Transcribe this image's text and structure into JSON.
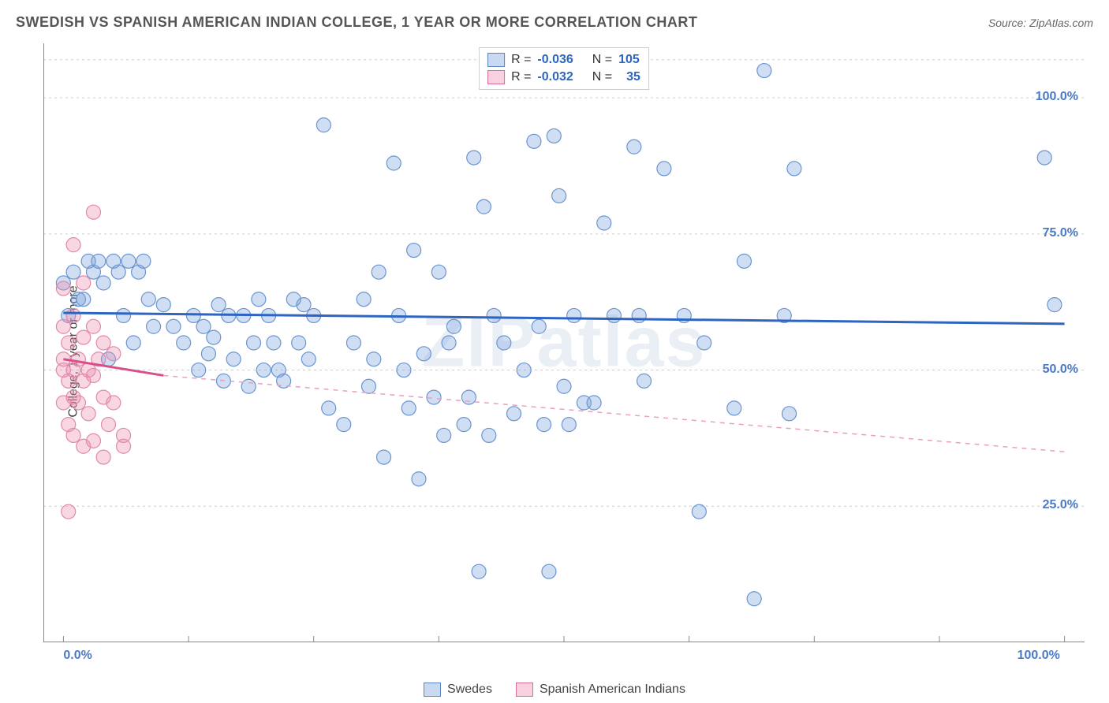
{
  "header": {
    "title": "SWEDISH VS SPANISH AMERICAN INDIAN COLLEGE, 1 YEAR OR MORE CORRELATION CHART",
    "source": "Source: ZipAtlas.com"
  },
  "watermark": "ZIPatlas",
  "chart": {
    "type": "scatter",
    "ylabel": "College, 1 year or more",
    "xlim": [
      -2,
      102
    ],
    "ylim": [
      0,
      110
    ],
    "x_axis_labels": [
      {
        "pos": 0,
        "text": "0.0%",
        "color": "#4a7ac7"
      },
      {
        "pos": 100,
        "text": "100.0%",
        "color": "#4a7ac7"
      }
    ],
    "x_ticks": [
      0,
      12.5,
      25,
      37.5,
      50,
      62.5,
      75,
      87.5,
      100
    ],
    "y_axis_labels": [
      {
        "pos": 25,
        "text": "25.0%",
        "color": "#4a7ac7"
      },
      {
        "pos": 50,
        "text": "50.0%",
        "color": "#4a7ac7"
      },
      {
        "pos": 75,
        "text": "75.0%",
        "color": "#4a7ac7"
      },
      {
        "pos": 100,
        "text": "100.0%",
        "color": "#4a7ac7"
      }
    ],
    "grid_lines_y": [
      25,
      50,
      75,
      100,
      107
    ],
    "grid_color": "#cccccc",
    "background_color": "#ffffff",
    "series": [
      {
        "name": "Swedes",
        "fill": "rgba(120, 160, 220, 0.35)",
        "stroke": "#6a95d0",
        "marker_radius": 9,
        "trend": {
          "x1": 0,
          "y1": 60.5,
          "x2": 100,
          "y2": 58.5,
          "stroke": "#2d65c0",
          "width": 3,
          "dash": "none"
        },
        "R": "-0.036",
        "N": "105",
        "legend_border": "#5a85c0",
        "points": [
          [
            0,
            66
          ],
          [
            0.5,
            60
          ],
          [
            1,
            68
          ],
          [
            1.5,
            63
          ],
          [
            2,
            63
          ],
          [
            2.5,
            70
          ],
          [
            3,
            68
          ],
          [
            3.5,
            70
          ],
          [
            4,
            66
          ],
          [
            4.5,
            52
          ],
          [
            5,
            70
          ],
          [
            5.5,
            68
          ],
          [
            6,
            60
          ],
          [
            6.5,
            70
          ],
          [
            7,
            55
          ],
          [
            7.5,
            68
          ],
          [
            8,
            70
          ],
          [
            8.5,
            63
          ],
          [
            9,
            58
          ],
          [
            10,
            62
          ],
          [
            11,
            58
          ],
          [
            12,
            55
          ],
          [
            13,
            60
          ],
          [
            13.5,
            50
          ],
          [
            14,
            58
          ],
          [
            14.5,
            53
          ],
          [
            15,
            56
          ],
          [
            15.5,
            62
          ],
          [
            16,
            48
          ],
          [
            16.5,
            60
          ],
          [
            17,
            52
          ],
          [
            18,
            60
          ],
          [
            18.5,
            47
          ],
          [
            19,
            55
          ],
          [
            19.5,
            63
          ],
          [
            20,
            50
          ],
          [
            20.5,
            60
          ],
          [
            21,
            55
          ],
          [
            21.5,
            50
          ],
          [
            22,
            48
          ],
          [
            23,
            63
          ],
          [
            23.5,
            55
          ],
          [
            24,
            62
          ],
          [
            24.5,
            52
          ],
          [
            25,
            60
          ],
          [
            26,
            95
          ],
          [
            26.5,
            43
          ],
          [
            28,
            40
          ],
          [
            29,
            55
          ],
          [
            30,
            63
          ],
          [
            30.5,
            47
          ],
          [
            31,
            52
          ],
          [
            31.5,
            68
          ],
          [
            32,
            34
          ],
          [
            33,
            88
          ],
          [
            33.5,
            60
          ],
          [
            34,
            50
          ],
          [
            34.5,
            43
          ],
          [
            35,
            72
          ],
          [
            35.5,
            30
          ],
          [
            36,
            53
          ],
          [
            37,
            45
          ],
          [
            37.5,
            68
          ],
          [
            38,
            38
          ],
          [
            38.5,
            55
          ],
          [
            39,
            58
          ],
          [
            40,
            40
          ],
          [
            40.5,
            45
          ],
          [
            41,
            89
          ],
          [
            41.5,
            13
          ],
          [
            42,
            80
          ],
          [
            42.5,
            38
          ],
          [
            43,
            60
          ],
          [
            44,
            55
          ],
          [
            45,
            42
          ],
          [
            46,
            50
          ],
          [
            47,
            92
          ],
          [
            47.5,
            58
          ],
          [
            48,
            40
          ],
          [
            48.5,
            13
          ],
          [
            49,
            93
          ],
          [
            49.5,
            82
          ],
          [
            50,
            47
          ],
          [
            50.5,
            40
          ],
          [
            51,
            60
          ],
          [
            52,
            44
          ],
          [
            53,
            44
          ],
          [
            54,
            77
          ],
          [
            55,
            60
          ],
          [
            57,
            91
          ],
          [
            57.5,
            60
          ],
          [
            58,
            48
          ],
          [
            60,
            87
          ],
          [
            62,
            60
          ],
          [
            63.5,
            24
          ],
          [
            64,
            55
          ],
          [
            67,
            43
          ],
          [
            68,
            70
          ],
          [
            69,
            8
          ],
          [
            70,
            105
          ],
          [
            72,
            60
          ],
          [
            72.5,
            42
          ],
          [
            73,
            87
          ],
          [
            98,
            89
          ],
          [
            99,
            62
          ]
        ]
      },
      {
        "name": "Spanish American Indians",
        "fill": "rgba(235, 140, 175, 0.35)",
        "stroke": "#e089aa",
        "marker_radius": 9,
        "trend_solid": {
          "x1": 0,
          "y1": 52,
          "x2": 10,
          "y2": 49,
          "stroke": "#d94f8a",
          "width": 3
        },
        "trend_dash": {
          "x1": 10,
          "y1": 49,
          "x2": 100,
          "y2": 35,
          "stroke": "#e8a0bd",
          "width": 1.5,
          "dash": "6 6"
        },
        "R": "-0.032",
        "N": "35",
        "legend_border": "#d56e9a",
        "points": [
          [
            0,
            65
          ],
          [
            0,
            58
          ],
          [
            0,
            52
          ],
          [
            0,
            50
          ],
          [
            0,
            44
          ],
          [
            0.5,
            55
          ],
          [
            0.5,
            48
          ],
          [
            0.5,
            40
          ],
          [
            1,
            73
          ],
          [
            1,
            60
          ],
          [
            1,
            50
          ],
          [
            1,
            45
          ],
          [
            1,
            38
          ],
          [
            1.5,
            52
          ],
          [
            1.5,
            44
          ],
          [
            2,
            66
          ],
          [
            2,
            56
          ],
          [
            2,
            48
          ],
          [
            2,
            36
          ],
          [
            2.5,
            50
          ],
          [
            2.5,
            42
          ],
          [
            3,
            79
          ],
          [
            3,
            58
          ],
          [
            3,
            49
          ],
          [
            3,
            37
          ],
          [
            3.5,
            52
          ],
          [
            4,
            55
          ],
          [
            4,
            45
          ],
          [
            4,
            34
          ],
          [
            4.5,
            40
          ],
          [
            5,
            53
          ],
          [
            5,
            44
          ],
          [
            0.5,
            24
          ],
          [
            6,
            38
          ],
          [
            6,
            36
          ]
        ]
      }
    ],
    "top_legend": {
      "rows": [
        {
          "swatch_fill": "rgba(120, 160, 220, 0.4)",
          "swatch_border": "#5a85c0",
          "r_label": "R =",
          "r_val": "-0.036",
          "n_label": "N =",
          "n_val": "105",
          "val_color": "#2d65c0"
        },
        {
          "swatch_fill": "rgba(235, 140, 175, 0.4)",
          "swatch_border": "#d56e9a",
          "r_label": "R =",
          "r_val": "-0.032",
          "n_label": "N =",
          "n_val": "35",
          "val_color": "#2d65c0"
        }
      ]
    }
  }
}
